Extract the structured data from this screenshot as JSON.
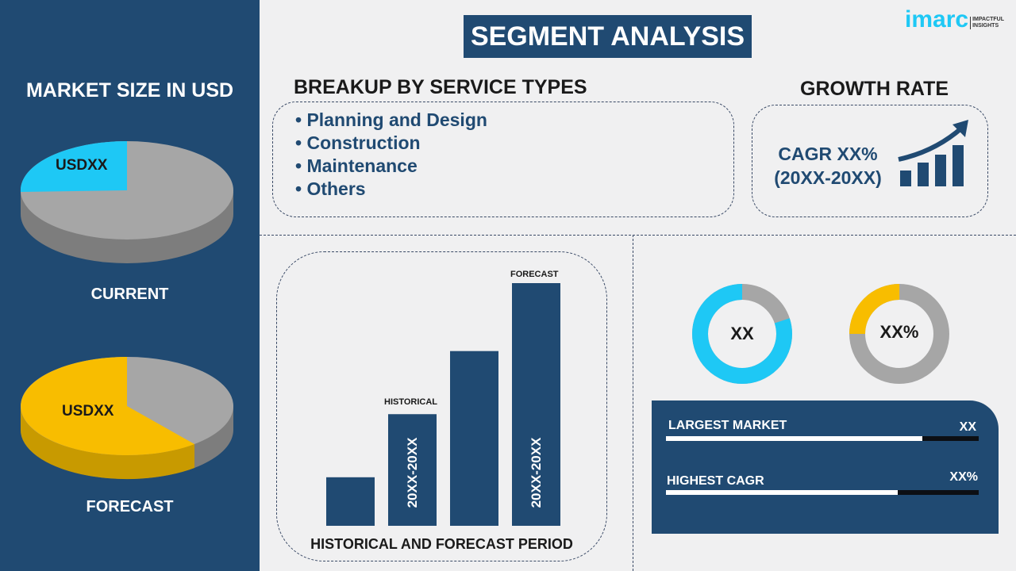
{
  "title": "SEGMENT ANALYSIS",
  "logo": {
    "text": "imarc",
    "tagline": "IMPACTFUL INSIGHTS"
  },
  "market_size": {
    "heading": "MARKET SIZE IN USD",
    "current": {
      "label": "CURRENT",
      "value": "USDXX",
      "color": "#1ec8f5"
    },
    "forecast": {
      "label": "FORECAST",
      "value": "USDXX",
      "color": "#f8bd00"
    }
  },
  "service_types": {
    "heading": "BREAKUP BY SERVICE TYPES",
    "items": [
      "Planning and Design",
      "Construction",
      "Maintenance",
      "Others"
    ]
  },
  "growth": {
    "heading": "GROWTH RATE",
    "cagr": "CAGR XX%",
    "period": "(20XX-20XX)"
  },
  "period_chart": {
    "caption": "HISTORICAL AND FORECAST PERIOD",
    "historical_label": "HISTORICAL",
    "forecast_label": "FORECAST",
    "historical_range": "20XX-20XX",
    "forecast_range": "20XX-20XX",
    "relative_heights": [
      1,
      2.3,
      3.6,
      5
    ]
  },
  "donuts": [
    {
      "value": "XX",
      "share": 0.8,
      "color": "#1ec8f5"
    },
    {
      "value": "XX%",
      "share": 0.25,
      "color": "#f8bd00"
    }
  ],
  "stats": [
    {
      "label": "LARGEST MARKET",
      "value": "XX",
      "fill": 0.82
    },
    {
      "label": "HIGHEST CAGR",
      "value": "XX%",
      "fill": 0.74
    }
  ]
}
